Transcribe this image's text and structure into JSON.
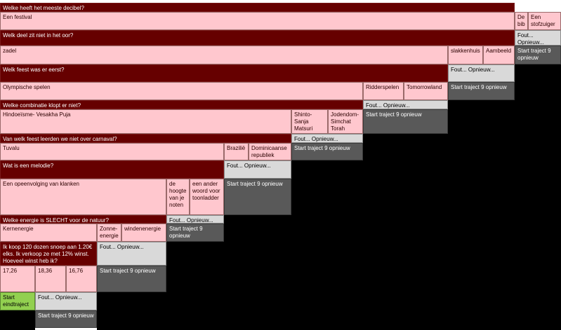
{
  "labels": {
    "wrong": "Fout... Opnieuw...",
    "restart": "Start traject 9 opnieuw",
    "final": "Start eindtraject"
  },
  "colors": {
    "question": "#660000",
    "answer": "#ffc7ce",
    "wrong": "#d9d9d9",
    "restart": "#595959",
    "final": "#92d050",
    "background": "#000000"
  },
  "questions": [
    {
      "question": "Welke heeft het meeste decibel?",
      "answers": [
        "Een festival",
        "De bib",
        "Een stofzuiger"
      ]
    },
    {
      "question": "Welk deel zit niet in het oor?",
      "answers": [
        "zadel",
        "slakkenhuis",
        "Aambeeld"
      ]
    },
    {
      "question": "Welk feest was er eerst?",
      "answers": [
        "Olympische spelen",
        "Ridderspelen",
        "Tomorrowland"
      ]
    },
    {
      "question": "Welke combinatie klopt er niet?",
      "answers": [
        "Hindoeïsme- Vesakha Puja",
        "Shinto- Sanja Matsuri",
        "Jodendom- Simchat Torah"
      ]
    },
    {
      "question": "Van welk feest leerden we niet over carnaval?",
      "answers": [
        "Tuvalu",
        "Brazilië",
        "Dominicaanse republiek"
      ]
    },
    {
      "question": "Wat is een melodie?",
      "answers": [
        "Een opeenvolging van klanken",
        "de hoogte van je noten",
        "een ander woord voor toonladder"
      ]
    },
    {
      "question": "Welke energie is SLECHT voor de natuur?",
      "answers": [
        "Kernenergie",
        "Zonne-energie",
        "windenenergie"
      ]
    },
    {
      "question": "Ik koop 120 dozen snoep aan 1.20€ elks. Ik verkoop ze met 12% winst. Hoeveel winst heb ik?",
      "answers": [
        "17,26",
        "18,36",
        "16,76"
      ]
    }
  ]
}
